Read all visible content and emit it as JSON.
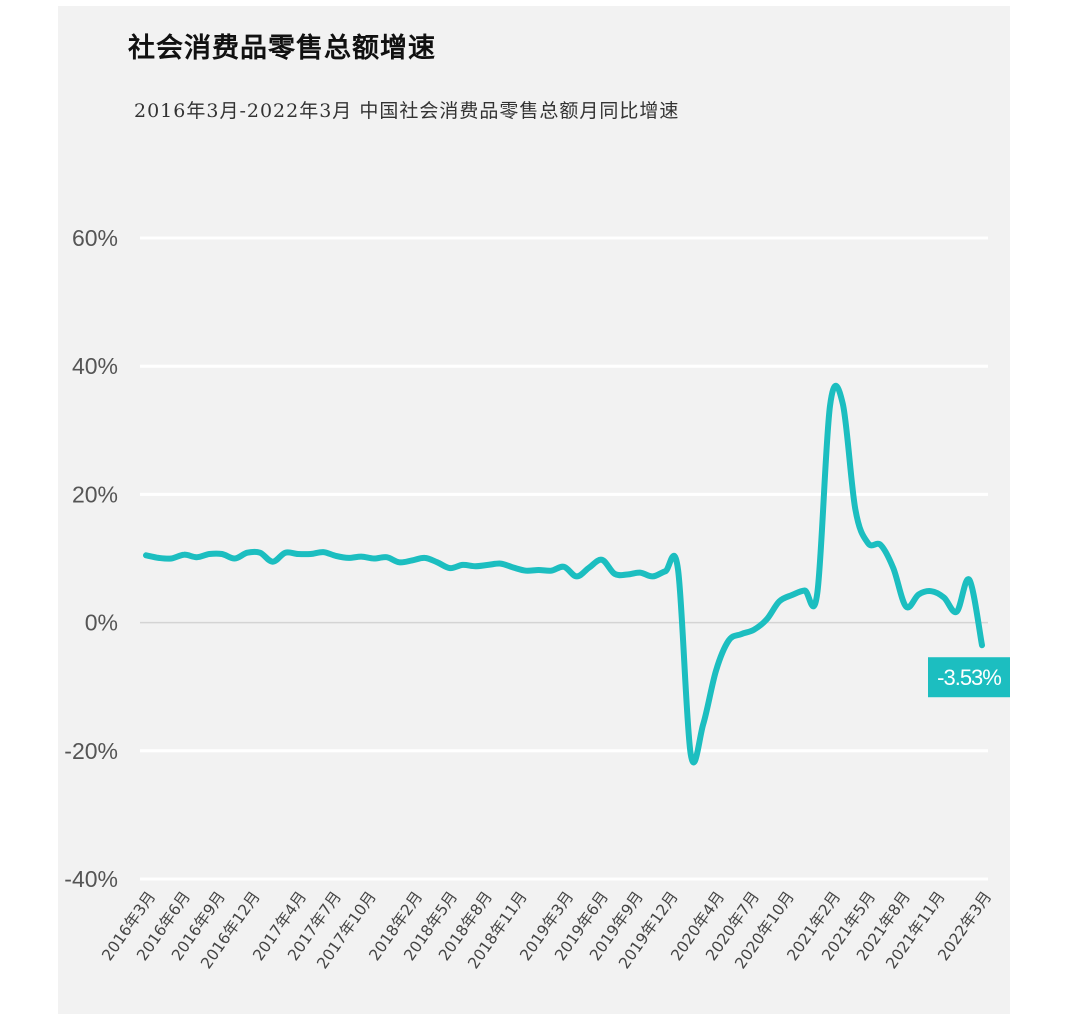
{
  "chart_data": {
    "type": "line",
    "title": "社会消费品零售总额增速",
    "subtitle": "2016年3月-2022年3月 中国社会消费品零售总额月同比增速",
    "ylim": [
      -40,
      60
    ],
    "yticks": [
      {
        "value": 60,
        "label": "60%"
      },
      {
        "value": 40,
        "label": "40%"
      },
      {
        "value": 20,
        "label": "20%"
      },
      {
        "value": 0,
        "label": "0%"
      },
      {
        "value": -20,
        "label": "-20%"
      },
      {
        "value": -40,
        "label": "-40%"
      }
    ],
    "x_tick_labels": [
      {
        "index": 0,
        "label": "2016年3月"
      },
      {
        "index": 3,
        "label": "2016年6月"
      },
      {
        "index": 6,
        "label": "2016年9月"
      },
      {
        "index": 9,
        "label": "2016年12月"
      },
      {
        "index": 13,
        "label": "2017年4月"
      },
      {
        "index": 16,
        "label": "2017年7月"
      },
      {
        "index": 19,
        "label": "2017年10月"
      },
      {
        "index": 23,
        "label": "2018年2月"
      },
      {
        "index": 26,
        "label": "2018年5月"
      },
      {
        "index": 29,
        "label": "2018年8月"
      },
      {
        "index": 32,
        "label": "2018年11月"
      },
      {
        "index": 36,
        "label": "2019年3月"
      },
      {
        "index": 39,
        "label": "2019年6月"
      },
      {
        "index": 42,
        "label": "2019年9月"
      },
      {
        "index": 45,
        "label": "2019年12月"
      },
      {
        "index": 49,
        "label": "2020年4月"
      },
      {
        "index": 52,
        "label": "2020年7月"
      },
      {
        "index": 55,
        "label": "2020年10月"
      },
      {
        "index": 59,
        "label": "2021年2月"
      },
      {
        "index": 62,
        "label": "2021年5月"
      },
      {
        "index": 65,
        "label": "2021年8月"
      },
      {
        "index": 68,
        "label": "2021年11月"
      },
      {
        "index": 72,
        "label": "2022年3月"
      }
    ],
    "series": [
      {
        "color": "#1cbec0",
        "values": [
          10.5,
          10.1,
          10.0,
          10.6,
          10.2,
          10.7,
          10.7,
          10.0,
          10.9,
          10.9,
          9.5,
          10.9,
          10.7,
          10.7,
          11.0,
          10.4,
          10.1,
          10.3,
          10.0,
          10.2,
          9.4,
          9.7,
          10.1,
          9.4,
          8.5,
          9.0,
          8.8,
          9.0,
          9.2,
          8.6,
          8.1,
          8.2,
          8.1,
          8.7,
          7.2,
          8.6,
          9.8,
          7.6,
          7.5,
          7.8,
          7.2,
          8.0,
          8.3,
          -20.5,
          -15.8,
          -7.5,
          -2.8,
          -1.8,
          -1.1,
          0.5,
          3.3,
          4.3,
          5.0,
          4.6,
          33.8,
          34.2,
          17.7,
          12.4,
          12.1,
          8.5,
          2.5,
          4.4,
          4.9,
          3.9,
          1.7,
          6.7,
          -3.53
        ]
      }
    ],
    "callout": {
      "value": -3.53,
      "label": "-3.53%"
    },
    "grid": true,
    "legend": "none"
  }
}
